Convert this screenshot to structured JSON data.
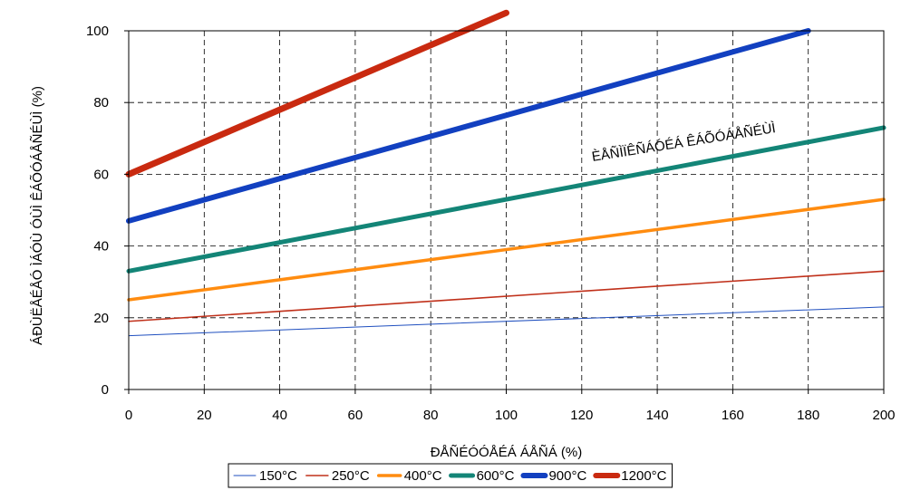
{
  "chart_data": {
    "type": "line",
    "title": "",
    "xlabel": "ÐÅÑÉÓÓÅÉÁ ÁÅÑÁ (%)",
    "ylabel": "ÁÐÙËÅÉÅÓ ÌÁÓÙ ÓÙÌ ÊÁÕÓÁÅÑÉÙÌ (%)",
    "xlim": [
      0,
      200
    ],
    "ylim": [
      0,
      100
    ],
    "xticks": [
      0,
      20,
      40,
      60,
      80,
      100,
      120,
      140,
      160,
      180,
      200
    ],
    "yticks": [
      0,
      20,
      40,
      60,
      80,
      100
    ],
    "grid": true,
    "legend_position": "bottom",
    "annotation": "ÈÅÑÌÏÊÑÁÓÉÁ ÊÁÕÓÁÅÑÉÙÌ",
    "series": [
      {
        "name": "150°C",
        "color": "#1f4fbf",
        "width": 1,
        "x": [
          0,
          200
        ],
        "y": [
          15,
          23
        ]
      },
      {
        "name": "250°C",
        "color": "#c0301a",
        "width": 1.6,
        "x": [
          0,
          200
        ],
        "y": [
          19,
          33
        ]
      },
      {
        "name": "400°C",
        "color": "#ff8c10",
        "width": 3.5,
        "x": [
          0,
          200
        ],
        "y": [
          25,
          53
        ]
      },
      {
        "name": "600°C",
        "color": "#138577",
        "width": 5,
        "x": [
          0,
          200
        ],
        "y": [
          33,
          73
        ]
      },
      {
        "name": "900°C",
        "color": "#1240c0",
        "width": 6,
        "x": [
          0,
          180
        ],
        "y": [
          47,
          100
        ]
      },
      {
        "name": "1200°C",
        "color": "#c92a10",
        "width": 7,
        "x": [
          0,
          100
        ],
        "y": [
          60,
          105
        ]
      }
    ]
  }
}
